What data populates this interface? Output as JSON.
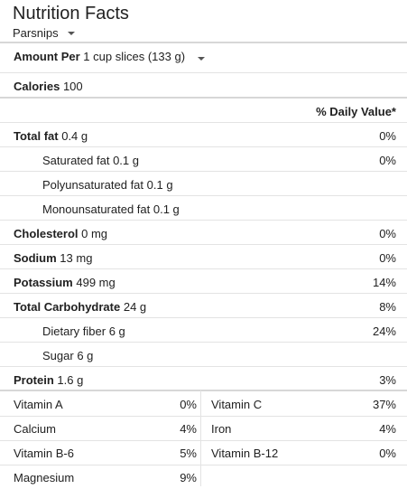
{
  "header": {
    "title": "Nutrition Facts",
    "food": "Parsnips"
  },
  "serving": {
    "label": "Amount Per",
    "value": "1 cup slices (133 g)"
  },
  "calories": {
    "label": "Calories",
    "value": "100"
  },
  "dv_header": "% Daily Value*",
  "nutrients": [
    {
      "label": "Total fat",
      "amount": "0.4 g",
      "pct": "0%"
    },
    {
      "label": "Saturated fat",
      "amount": "0.1 g",
      "pct": "0%"
    },
    {
      "label": "Polyunsaturated fat",
      "amount": "0.1 g",
      "pct": ""
    },
    {
      "label": "Monounsaturated fat",
      "amount": "0.1 g",
      "pct": ""
    },
    {
      "label": "Cholesterol",
      "amount": "0 mg",
      "pct": "0%"
    },
    {
      "label": "Sodium",
      "amount": "13 mg",
      "pct": "0%"
    },
    {
      "label": "Potassium",
      "amount": "499 mg",
      "pct": "14%"
    },
    {
      "label": "Total Carbohydrate",
      "amount": "24 g",
      "pct": "8%"
    },
    {
      "label": "Dietary fiber",
      "amount": "6 g",
      "pct": "24%"
    },
    {
      "label": "Sugar",
      "amount": "6 g",
      "pct": ""
    },
    {
      "label": "Protein",
      "amount": "1.6 g",
      "pct": "3%"
    }
  ],
  "vitamins": [
    {
      "left_name": "Vitamin A",
      "left_pct": "0%",
      "right_name": "Vitamin C",
      "right_pct": "37%"
    },
    {
      "left_name": "Calcium",
      "left_pct": "4%",
      "right_name": "Iron",
      "right_pct": "4%"
    },
    {
      "left_name": "Vitamin B-6",
      "left_pct": "5%",
      "right_name": "Vitamin B-12",
      "right_pct": "0%"
    },
    {
      "left_name": "Magnesium",
      "left_pct": "9%",
      "right_name": "",
      "right_pct": ""
    }
  ]
}
